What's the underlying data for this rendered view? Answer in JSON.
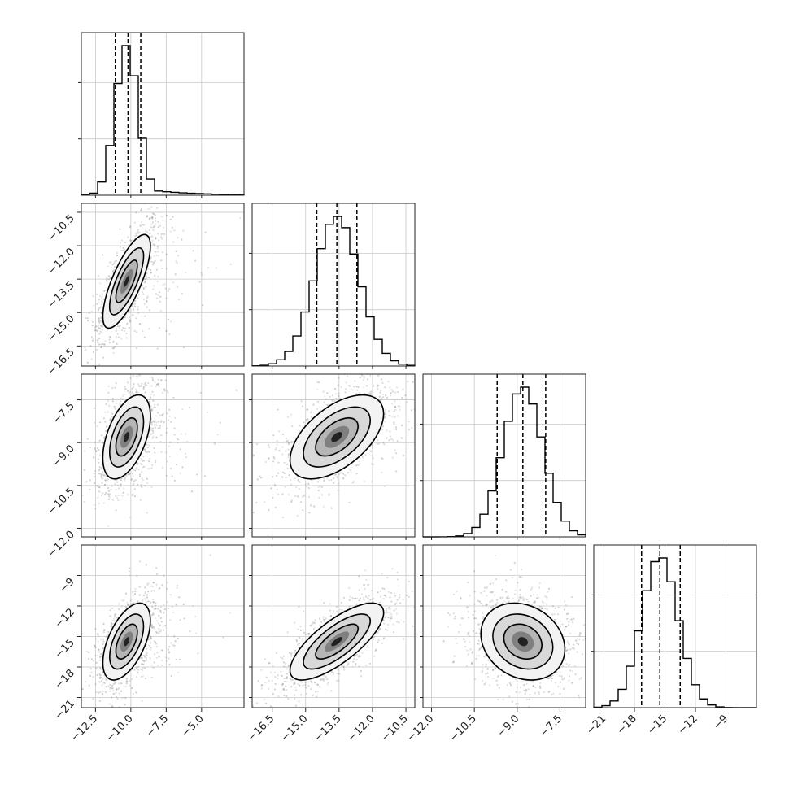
{
  "chart_data": {
    "type": "corner",
    "parameters": [
      {
        "index": 0,
        "range": [
          -13.5,
          -2.0
        ],
        "mean": -10.3,
        "sd": 0.8,
        "quantiles": [
          -11.1,
          -10.2,
          -9.3
        ],
        "ticks": [
          -12.5,
          -10.0,
          -7.5,
          -5.0
        ],
        "tick_labels": [
          "−12.5",
          "−10.0",
          "−7.5",
          "−5.0"
        ]
      },
      {
        "index": 1,
        "range": [
          -17.4,
          -10.1
        ],
        "mean": -13.6,
        "sd": 1.0,
        "quantiles": [
          -14.5,
          -13.6,
          -12.7
        ],
        "ticks": [
          -16.5,
          -15.0,
          -13.5,
          -12.0,
          -10.5
        ],
        "tick_labels": [
          "−16.5",
          "−15.0",
          "−13.5",
          "−12.0",
          "−10.5"
        ]
      },
      {
        "index": 2,
        "range": [
          -12.3,
          -6.6
        ],
        "mean": -8.8,
        "sd": 0.7,
        "quantiles": [
          -9.7,
          -8.8,
          -8.0
        ],
        "ticks": [
          -12.0,
          -10.5,
          -9.0,
          -7.5
        ],
        "tick_labels": [
          "−12.0",
          "−10.5",
          "−9.0",
          "−7.5"
        ]
      },
      {
        "index": 3,
        "range": [
          -22.0,
          -6.0
        ],
        "mean": -15.5,
        "sd": 1.8,
        "quantiles": [
          -17.3,
          -15.5,
          -13.5
        ],
        "ticks": [
          -21,
          -18,
          -15,
          -12,
          -9
        ],
        "tick_labels": [
          "−21",
          "−18",
          "−15",
          "−12",
          "−9"
        ]
      }
    ],
    "correlations": {
      "1,0": 0.75,
      "2,0": 0.5,
      "2,1": 0.55,
      "3,0": 0.55,
      "3,1": 0.75,
      "3,2": -0.2
    },
    "histogram_bins": 20,
    "grid": true
  }
}
